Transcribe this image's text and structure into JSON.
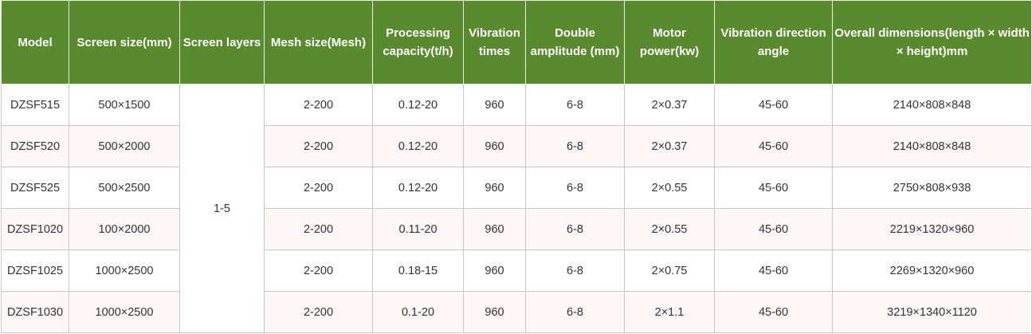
{
  "table": {
    "headers": [
      "Model",
      "Screen size(mm)",
      "Screen layers",
      "Mesh size(Mesh)",
      "Processing capacity(t/h)",
      "Vibration times",
      "Double amplitude (mm)",
      "Motor power(kw)",
      "Vibration direction angle",
      "Overall dimensions(length × width × height)mm"
    ],
    "screen_layers_merged": "1-5",
    "rows": [
      [
        "DZSF515",
        "500×1500",
        "2-200",
        "0.12-20",
        "960",
        "6-8",
        "2×0.37",
        "45-60",
        "2140×808×848"
      ],
      [
        "DZSF520",
        "500×2000",
        "2-200",
        "0.12-20",
        "960",
        "6-8",
        "2×0.37",
        "45-60",
        "2140×808×848"
      ],
      [
        "DZSF525",
        "500×2500",
        "2-200",
        "0.12-20",
        "960",
        "6-8",
        "2×0.55",
        "45-60",
        "2750×808×938"
      ],
      [
        "DZSF1020",
        "100×2000",
        "2-200",
        "0.11-20",
        "960",
        "6-8",
        "2×0.55",
        "45-60",
        "2219×1320×960"
      ],
      [
        "DZSF1025",
        "1000×2500",
        "2-200",
        "0.18-15",
        "960",
        "6-8",
        "2×0.75",
        "45-60",
        "2269×1320×960"
      ],
      [
        "DZSF1030",
        "1000×2500",
        "2-200",
        "0.1-20",
        "960",
        "6-8",
        "2×1.1",
        "45-60",
        "3219×1340×1120"
      ]
    ],
    "colors": {
      "header_bg": "#5a8a2e",
      "header_text": "#ffffff",
      "row_alt_bg": "#fdf6f6",
      "cell_border": "#c8c8c8"
    }
  }
}
